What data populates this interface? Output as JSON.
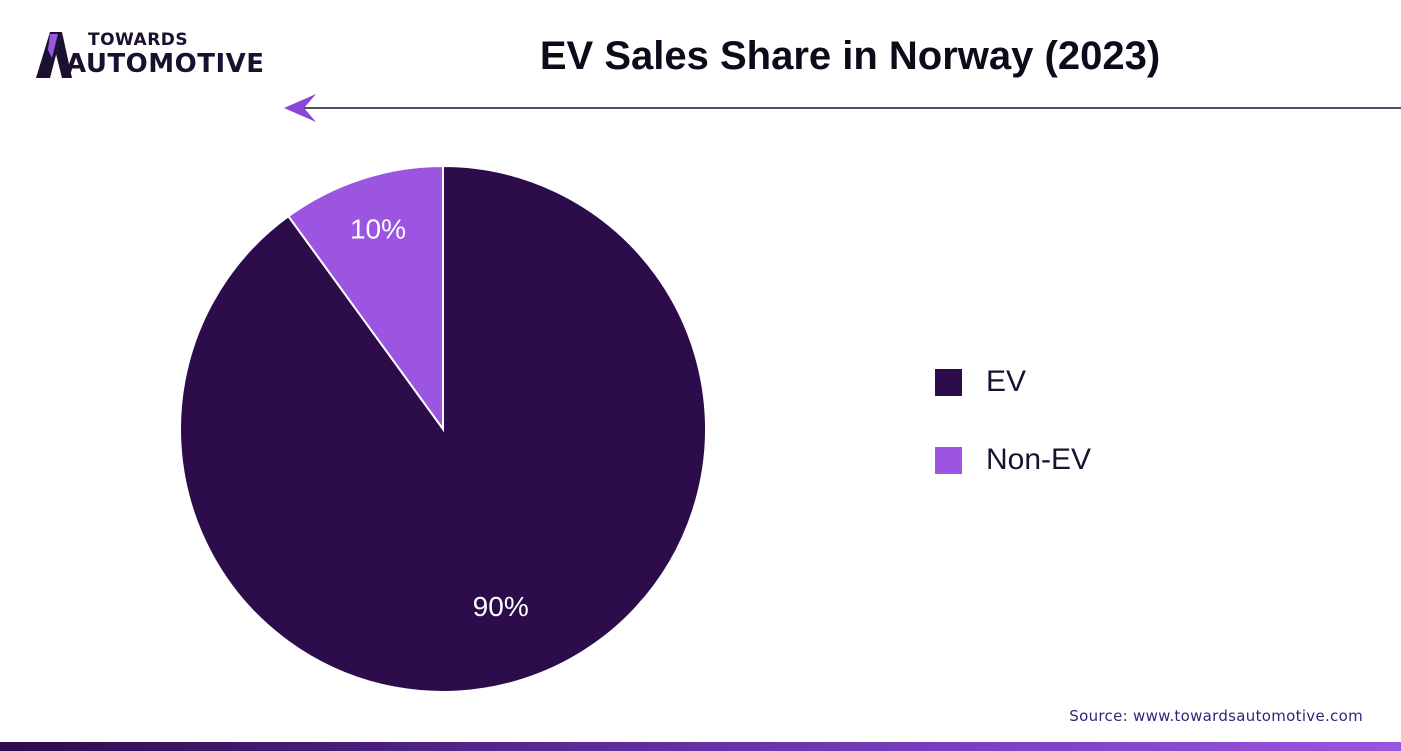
{
  "brand": {
    "logo_line1": "TOWARDS",
    "logo_line2": "AUTOMOTIVE",
    "logo_icon": "automotive-a-mark-icon",
    "back_icon": "arrow-left-icon"
  },
  "colors": {
    "ev": "#2c0c4a",
    "non_ev": "#9b55e0",
    "title": "#0f0a1a",
    "source": "#3a1f7a"
  },
  "source_text": "Source: www.towardsautomotive.com",
  "chart_data": {
    "type": "pie",
    "title": "EV Sales Share in Norway (2023)",
    "categories": [
      "EV",
      "Non-EV"
    ],
    "values": [
      90,
      10
    ],
    "data_labels": [
      "90%",
      "10%"
    ],
    "unit": "%",
    "legend_position": "right",
    "start_angle": "12 o'clock",
    "direction": "clockwise"
  }
}
